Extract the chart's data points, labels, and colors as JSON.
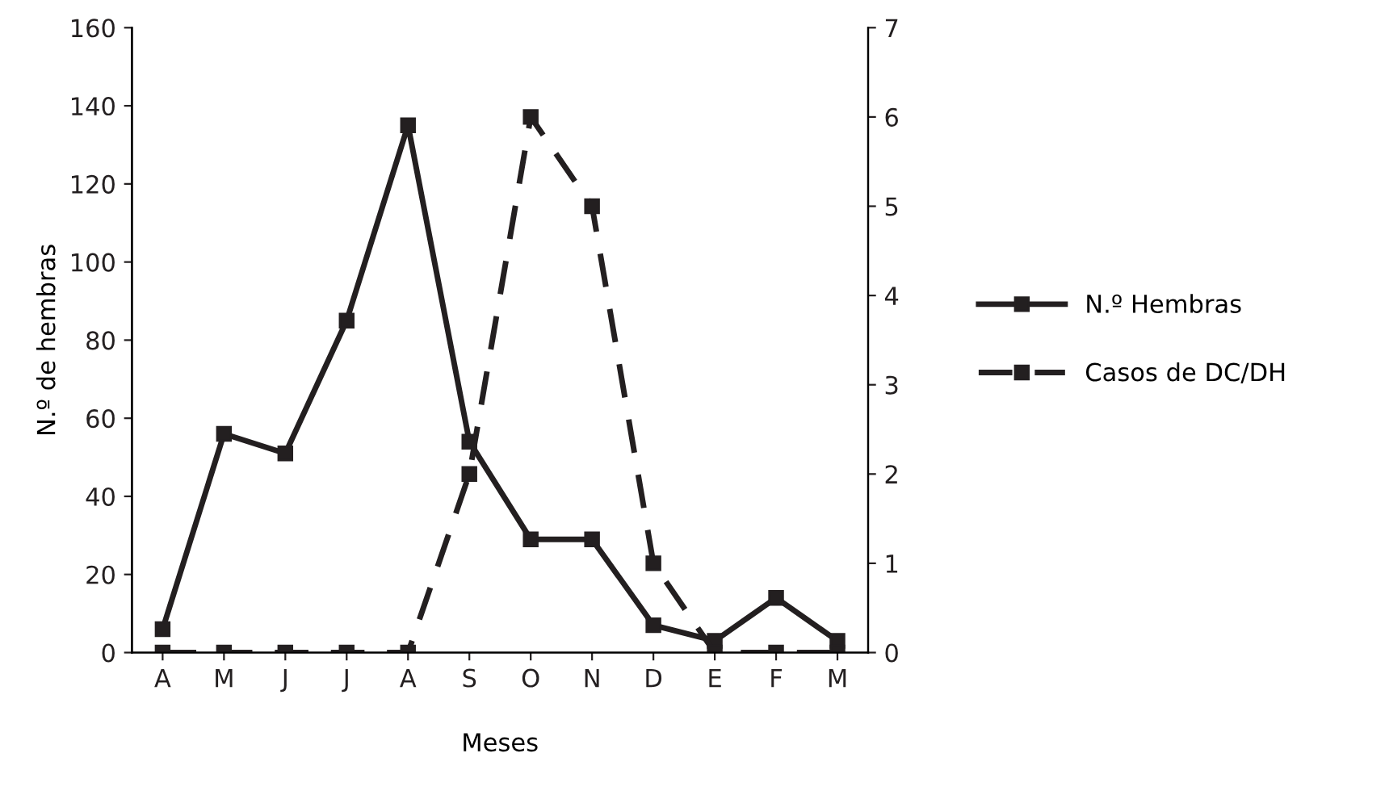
{
  "chart_data": {
    "type": "line",
    "xlabel": "Meses",
    "ylabel": "N.º de hembras",
    "categories": [
      "A",
      "M",
      "J",
      "J",
      "A",
      "S",
      "O",
      "N",
      "D",
      "E",
      "F",
      "M"
    ],
    "series": [
      {
        "name": "N.º Hembras",
        "color": "#231f20",
        "line_style": "solid",
        "values": [
          6,
          56,
          51,
          85,
          135,
          54,
          29,
          29,
          7,
          3,
          14,
          3
        ]
      },
      {
        "name": "Casos de DC/DH",
        "color": "#231f20",
        "line_style": "dashed",
        "axis": "y2",
        "values": [
          0,
          0,
          0,
          0,
          0,
          2,
          6,
          5,
          1,
          0,
          0,
          0
        ]
      }
    ],
    "ylim": [
      0,
      160
    ],
    "yticks": [
      0,
      20,
      40,
      60,
      80,
      100,
      120,
      140,
      160
    ],
    "y2lim": [
      0,
      7
    ],
    "y2ticks": [
      0,
      1,
      2,
      3,
      4,
      5,
      6,
      7
    ],
    "marker": "square",
    "grid": false,
    "legend": "right"
  }
}
